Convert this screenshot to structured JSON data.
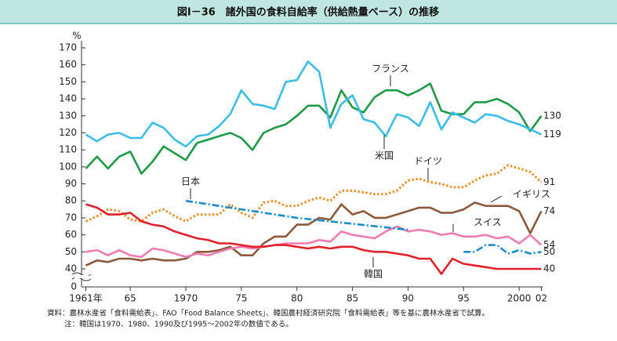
{
  "chart_data": {
    "type": "line",
    "title": "図Ⅰ－36　諸外国の食料自給率（供給熱量ベース）の推移",
    "y_unit": "%",
    "notes": [
      "資料：農林水産省「食料需給表」、FAO「Food Balance Sheets」、韓国農村経済研究院「食料需給表」等を基に農林水産省で試算。",
      "注：韓国は1970、1980、1990及び1995～2002年の数値である。"
    ],
    "x": [
      1961,
      1962,
      1963,
      1964,
      1965,
      1966,
      1967,
      1968,
      1969,
      1970,
      1971,
      1972,
      1973,
      1974,
      1975,
      1976,
      1977,
      1978,
      1979,
      1980,
      1981,
      1982,
      1983,
      1984,
      1985,
      1986,
      1987,
      1988,
      1989,
      1990,
      1991,
      1992,
      1993,
      1994,
      1995,
      1996,
      1997,
      1998,
      1999,
      2000,
      2001,
      2002
    ],
    "xlim": [
      1961,
      2002
    ],
    "xticks": [
      {
        "value": 1961,
        "label": "1961年"
      },
      {
        "value": 1965,
        "label": "65"
      },
      1970,
      {
        "value": 1975,
        "label": "75"
      },
      {
        "value": 1980,
        "label": "80"
      },
      {
        "value": 1985,
        "label": "85"
      },
      {
        "value": 1990,
        "label": "90"
      },
      {
        "value": 1995,
        "label": "95"
      },
      2000,
      {
        "value": 2002,
        "label": "02"
      }
    ],
    "ylim": [
      0,
      170
    ],
    "ybreak": [
      0,
      30
    ],
    "yticks": [
      0,
      40,
      50,
      60,
      70,
      80,
      90,
      100,
      110,
      120,
      130,
      140,
      150,
      160,
      170
    ],
    "series": [
      {
        "name": "フランス",
        "color": "#1e9a47",
        "style": "solid",
        "values": [
          99,
          106,
          99,
          106,
          109,
          96,
          103,
          112,
          108,
          104,
          114,
          116,
          118,
          120,
          117,
          110,
          120,
          123,
          125,
          130,
          136,
          136,
          129,
          145,
          135,
          132,
          141,
          145,
          145,
          142,
          145,
          149,
          133,
          131,
          131,
          138,
          138,
          140,
          137,
          132,
          121,
          130
        ]
      },
      {
        "name": "米国",
        "color": "#3cbde8",
        "style": "solid",
        "values": [
          119,
          115,
          119,
          120,
          117,
          117,
          126,
          123,
          116,
          112,
          118,
          119,
          124,
          131,
          145,
          137,
          136,
          134,
          150,
          151,
          162,
          156,
          123,
          137,
          142,
          128,
          126,
          118,
          131,
          129,
          124,
          138,
          122,
          132,
          129,
          126,
          131,
          130,
          127,
          125,
          122,
          119
        ]
      },
      {
        "name": "ドイツ",
        "color": "#e8922a",
        "style": "dotted",
        "values": [
          68,
          71,
          75,
          74,
          69,
          68,
          73,
          75,
          71,
          68,
          72,
          72,
          72,
          78,
          73,
          70,
          79,
          80,
          77,
          77,
          80,
          82,
          80,
          86,
          86,
          85,
          84,
          84,
          86,
          92,
          93,
          91,
          90,
          88,
          88,
          92,
          95,
          96,
          101,
          99,
          97,
          91
        ]
      },
      {
        "name": "イギリス",
        "color": "#8b5a3c",
        "style": "solid",
        "values": [
          42,
          45,
          44,
          46,
          46,
          45,
          46,
          45,
          45,
          46,
          50,
          50,
          51,
          53,
          48,
          48,
          55,
          59,
          59,
          66,
          66,
          70,
          69,
          78,
          72,
          74,
          70,
          70,
          72,
          74,
          76,
          76,
          73,
          73,
          75,
          79,
          77,
          77,
          77,
          74,
          61,
          74
        ]
      },
      {
        "name": "スイス",
        "color": "#f07cb0",
        "style": "solid",
        "values": [
          50,
          51,
          48,
          51,
          48,
          47,
          52,
          51,
          49,
          47,
          49,
          48,
          50,
          52,
          53,
          52,
          53,
          54,
          55,
          55,
          55,
          57,
          56,
          62,
          60,
          59,
          58,
          62,
          65,
          62,
          63,
          62,
          60,
          61,
          59,
          59,
          60,
          58,
          59,
          55,
          60,
          54
        ]
      },
      {
        "name": "日本",
        "color": "#e0202a",
        "style": "solid",
        "values": [
          78,
          76,
          72,
          72,
          73,
          68,
          66,
          65,
          62,
          60,
          58,
          57,
          55,
          55,
          54,
          53,
          53,
          54,
          54,
          53,
          52,
          53,
          52,
          53,
          53,
          51,
          50,
          50,
          49,
          48,
          46,
          46,
          37,
          46,
          43,
          42,
          41,
          40,
          40,
          40,
          40,
          40
        ]
      },
      {
        "name": "韓国",
        "color": "#1a8cc8",
        "style": "dashdot",
        "x": [
          1970,
          1980,
          1990,
          null,
          1995,
          1996,
          1997,
          1998,
          1999,
          2000,
          2001,
          2002
        ],
        "values": [
          80,
          70,
          63,
          null,
          50,
          50,
          54,
          54,
          49,
          51,
          49,
          50
        ]
      }
    ]
  }
}
